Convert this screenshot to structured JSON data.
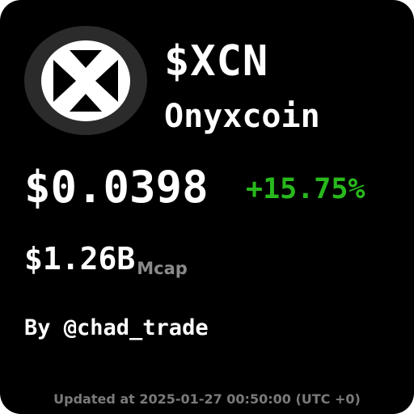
{
  "token": {
    "ticker": "$XCN",
    "name": "Onyxcoin",
    "logo_icon": "onyxcoin-logo-icon"
  },
  "price": {
    "value": "$0.0398",
    "change": "+15.75%"
  },
  "market_cap": {
    "value": "$1.26B",
    "label": "Mcap"
  },
  "author": "By @chad_trade",
  "footer": {
    "updated": "Updated at 2025-01-27 00:50:00 (UTC +0)"
  },
  "colors": {
    "background": "#000000",
    "text": "#ffffff",
    "positive": "#28b91d",
    "muted": "#8a8a8a",
    "logo_circle": "#2b2b2b"
  }
}
